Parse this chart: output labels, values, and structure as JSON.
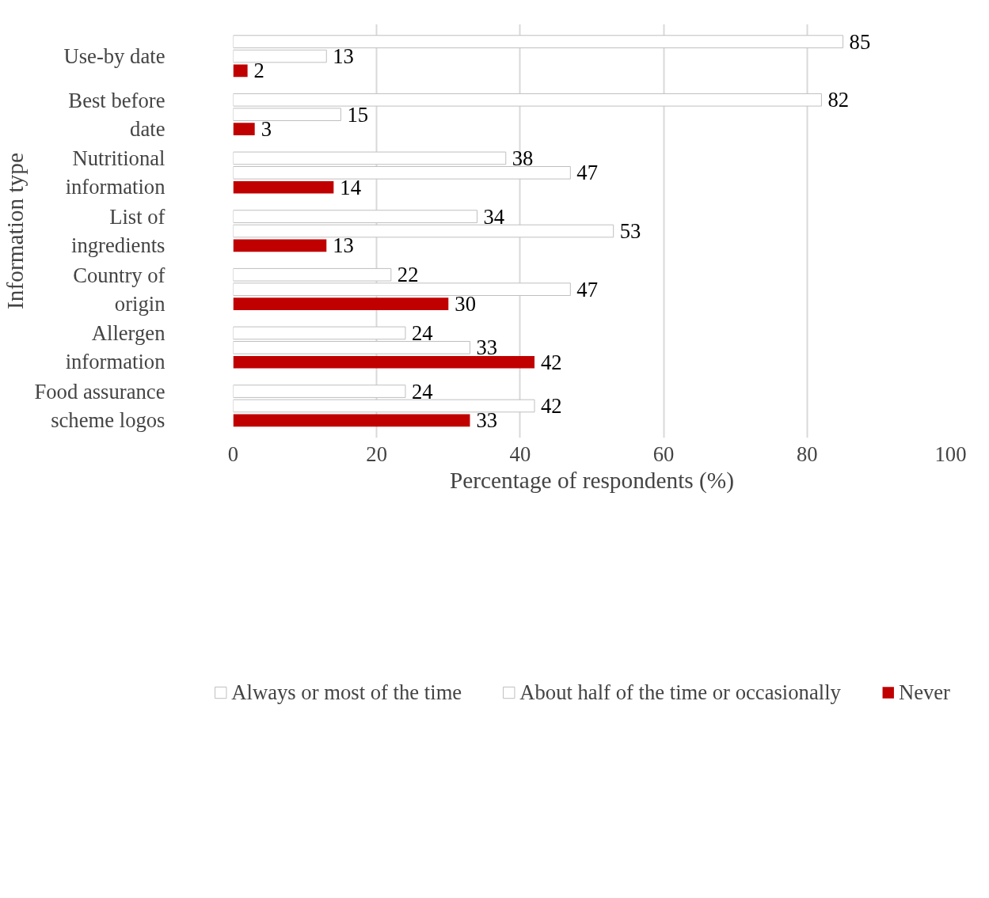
{
  "chart_data": {
    "type": "bar",
    "orientation": "horizontal",
    "xlabel": "Percentage of respondents (%)",
    "ylabel": "Information type",
    "categories": [
      "Use-by date",
      "Best before date",
      "Nutritional information",
      "List of ingredients",
      "Country of origin",
      "Allergen information",
      "Food assurance scheme logos"
    ],
    "series": [
      {
        "name": "Always or most of the time",
        "color": "#ffffff",
        "values": [
          85,
          82,
          38,
          34,
          22,
          24,
          24
        ]
      },
      {
        "name": "About half of the time or occasionally",
        "color": "#ffffff",
        "values": [
          13,
          15,
          47,
          53,
          47,
          33,
          42
        ]
      },
      {
        "name": "Never",
        "color": "#c00000",
        "values": [
          2,
          3,
          14,
          13,
          30,
          42,
          33
        ]
      }
    ],
    "xlim": [
      0,
      100
    ],
    "xticks": [
      0,
      20,
      40,
      60,
      80,
      100
    ],
    "grid": "x",
    "legend": "bottom",
    "data_labels": true
  }
}
